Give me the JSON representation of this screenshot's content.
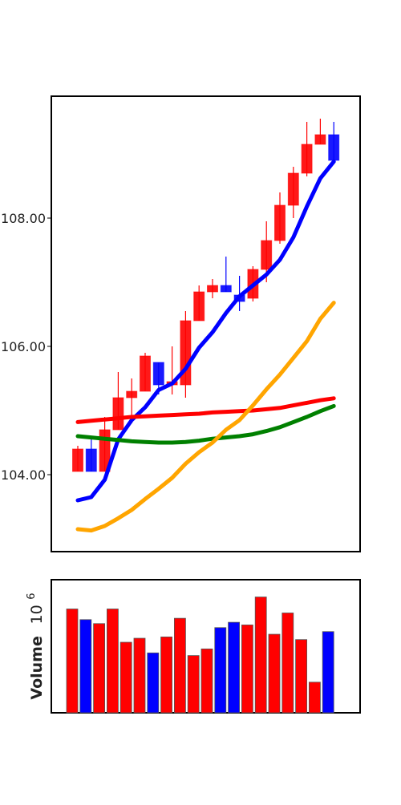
{
  "chart_data": [
    {
      "type": "candlestick",
      "ylim": [
        102.8,
        109.9
      ],
      "yticks": [
        104.0,
        106.0,
        108.0
      ],
      "ytick_labels": [
        "104.00",
        "106.00",
        "108.00"
      ],
      "grid": false,
      "colors": {
        "up": "#ff0000",
        "down": "#0000ff",
        "frame": "#000000"
      },
      "candles": [
        {
          "open": 104.05,
          "high": 104.45,
          "low": 104.05,
          "close": 104.4,
          "color": "up"
        },
        {
          "open": 104.4,
          "high": 104.55,
          "low": 104.05,
          "close": 104.05,
          "color": "down"
        },
        {
          "open": 104.05,
          "high": 104.9,
          "low": 104.05,
          "close": 104.7,
          "color": "up"
        },
        {
          "open": 104.7,
          "high": 105.6,
          "low": 104.7,
          "close": 105.2,
          "color": "up"
        },
        {
          "open": 105.2,
          "high": 105.5,
          "low": 104.8,
          "close": 105.3,
          "color": "up"
        },
        {
          "open": 105.3,
          "high": 105.9,
          "low": 105.3,
          "close": 105.85,
          "color": "up"
        },
        {
          "open": 105.75,
          "high": 105.75,
          "low": 105.25,
          "close": 105.4,
          "color": "down"
        },
        {
          "open": 105.4,
          "high": 106.0,
          "low": 105.25,
          "close": 105.45,
          "color": "up"
        },
        {
          "open": 105.4,
          "high": 106.55,
          "low": 105.2,
          "close": 106.4,
          "color": "up"
        },
        {
          "open": 106.4,
          "high": 106.95,
          "low": 106.4,
          "close": 106.85,
          "color": "up"
        },
        {
          "open": 106.85,
          "high": 107.05,
          "low": 106.75,
          "close": 106.95,
          "color": "up"
        },
        {
          "open": 106.95,
          "high": 107.4,
          "low": 106.85,
          "close": 106.85,
          "color": "down"
        },
        {
          "open": 106.8,
          "high": 107.1,
          "low": 106.55,
          "close": 106.7,
          "color": "down"
        },
        {
          "open": 106.75,
          "high": 107.25,
          "low": 106.7,
          "close": 107.2,
          "color": "up"
        },
        {
          "open": 107.2,
          "high": 107.95,
          "low": 107.0,
          "close": 107.65,
          "color": "up"
        },
        {
          "open": 107.65,
          "high": 108.4,
          "low": 107.6,
          "close": 108.2,
          "color": "up"
        },
        {
          "open": 108.2,
          "high": 108.8,
          "low": 108.0,
          "close": 108.7,
          "color": "up"
        },
        {
          "open": 108.7,
          "high": 109.5,
          "low": 108.65,
          "close": 109.15,
          "color": "up"
        },
        {
          "open": 109.15,
          "high": 109.55,
          "low": 109.15,
          "close": 109.3,
          "color": "up"
        },
        {
          "open": 109.3,
          "high": 109.5,
          "low": 108.9,
          "close": 108.9,
          "color": "down"
        }
      ],
      "lines": [
        {
          "color": "#0000ff",
          "values": [
            103.6,
            103.65,
            103.92,
            104.55,
            104.85,
            105.05,
            105.32,
            105.42,
            105.65,
            105.98,
            106.22,
            106.52,
            106.78,
            106.95,
            107.12,
            107.35,
            107.7,
            108.18,
            108.62,
            108.88
          ]
        },
        {
          "color": "#ff0000",
          "values": [
            104.82,
            104.84,
            104.86,
            104.88,
            104.9,
            104.91,
            104.92,
            104.93,
            104.94,
            104.95,
            104.97,
            104.98,
            104.99,
            105.0,
            105.02,
            105.04,
            105.08,
            105.12,
            105.16,
            105.19
          ]
        },
        {
          "color": "#008000",
          "values": [
            104.6,
            104.58,
            104.56,
            104.54,
            104.52,
            104.51,
            104.5,
            104.5,
            104.51,
            104.53,
            104.56,
            104.58,
            104.6,
            104.63,
            104.68,
            104.74,
            104.82,
            104.9,
            104.99,
            105.07
          ]
        },
        {
          "color": "#ffa500",
          "values": [
            103.15,
            103.13,
            103.2,
            103.32,
            103.45,
            103.62,
            103.78,
            103.95,
            104.17,
            104.35,
            104.5,
            104.7,
            104.85,
            105.08,
            105.33,
            105.56,
            105.82,
            106.08,
            106.43,
            106.68
          ]
        }
      ]
    },
    {
      "type": "bar",
      "ylabel": "Volume",
      "ylabel_multiplier": "10",
      "ylabel_exponent": "6",
      "ylim": [
        0,
        1.0
      ],
      "grid": false,
      "values": [
        0.78,
        0.7,
        0.67,
        0.78,
        0.53,
        0.56,
        0.45,
        0.57,
        0.71,
        0.43,
        0.48,
        0.64,
        0.68,
        0.66,
        0.87,
        0.59,
        0.75,
        0.55,
        0.23,
        0.61
      ],
      "colors": [
        "#ff0000",
        "#0000ff",
        "#ff0000",
        "#ff0000",
        "#ff0000",
        "#ff0000",
        "#0000ff",
        "#ff0000",
        "#ff0000",
        "#ff0000",
        "#ff0000",
        "#0000ff",
        "#0000ff",
        "#ff0000",
        "#ff0000",
        "#ff0000",
        "#ff0000",
        "#ff0000",
        "#ff0000",
        "#0000ff"
      ]
    }
  ]
}
